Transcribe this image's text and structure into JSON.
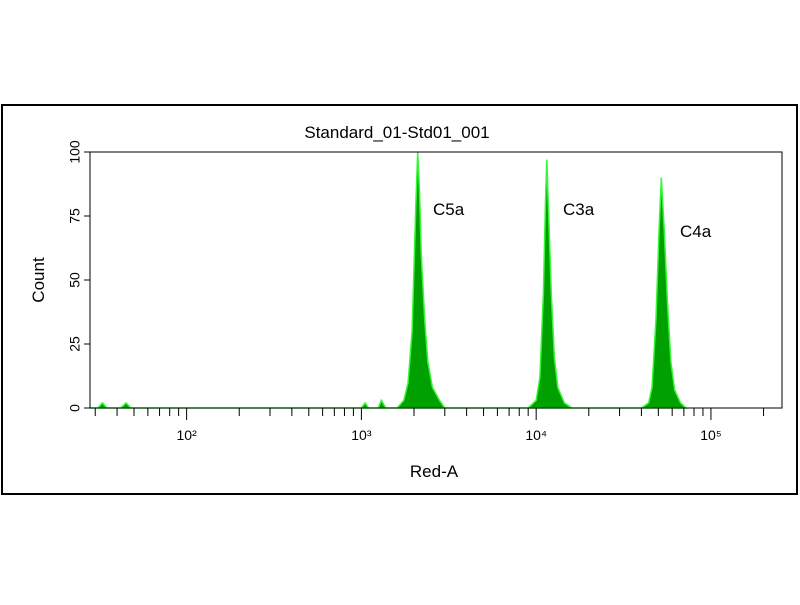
{
  "chart_data": {
    "type": "area",
    "title": "Standard_01-Std01_001",
    "xlabel": "Red-A",
    "ylabel": "Count",
    "color": "#00a000",
    "edge_color": "#39f539",
    "xscale": "log",
    "xlim": [
      28,
      255000
    ],
    "ylim": [
      0,
      100
    ],
    "xticks": [
      {
        "value": 100,
        "label": "10²"
      },
      {
        "value": 1000,
        "label": "10³"
      },
      {
        "value": 10000,
        "label": "10⁴"
      },
      {
        "value": 100000,
        "label": "10⁵"
      }
    ],
    "xminorticks": [
      30,
      40,
      50,
      60,
      70,
      80,
      90,
      200,
      300,
      400,
      500,
      600,
      700,
      800,
      900,
      2000,
      3000,
      4000,
      5000,
      6000,
      7000,
      8000,
      9000,
      20000,
      30000,
      40000,
      50000,
      60000,
      70000,
      80000,
      90000,
      200000
    ],
    "yticks": [
      0,
      25,
      50,
      75,
      100
    ],
    "annotations": [
      "C5a",
      "C3a",
      "C4a"
    ],
    "x": [
      28,
      31,
      33,
      35,
      42,
      45,
      48,
      1000,
      1050,
      1100,
      1250,
      1300,
      1380,
      1600,
      1750,
      1850,
      1950,
      2000,
      2050,
      2100,
      2150,
      2200,
      2300,
      2400,
      2550,
      2800,
      3000,
      9000,
      10000,
      10500,
      11000,
      11300,
      11500,
      11800,
      12200,
      12700,
      13300,
      14500,
      16000,
      40000,
      44000,
      46000,
      48500,
      50500,
      52000,
      54000,
      56500,
      59000,
      62000,
      67000,
      72000
    ],
    "values": [
      0,
      0,
      2,
      0,
      0,
      2,
      0,
      0,
      2,
      0,
      0,
      3,
      0,
      0,
      3,
      10,
      30,
      55,
      80,
      100,
      85,
      60,
      35,
      18,
      8,
      3,
      0,
      0,
      3,
      12,
      45,
      80,
      97,
      75,
      45,
      20,
      8,
      2,
      0,
      0,
      2,
      8,
      35,
      70,
      90,
      70,
      40,
      18,
      7,
      2,
      0
    ]
  }
}
